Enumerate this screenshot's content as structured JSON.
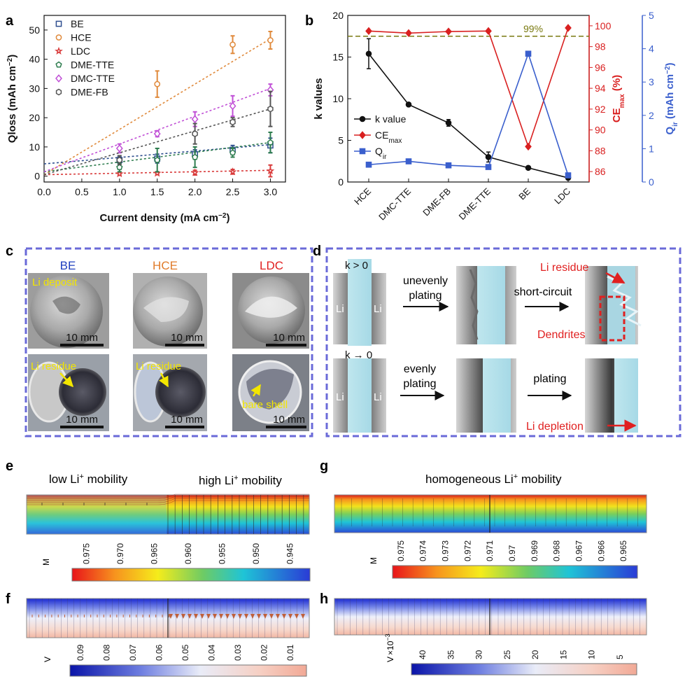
{
  "panels": {
    "a": "a",
    "b": "b",
    "c": "c",
    "d": "d",
    "e": "e",
    "f": "f",
    "g": "g",
    "h": "h"
  },
  "chart_data": [
    {
      "id": "a",
      "type": "scatter",
      "xlabel_main": "Current density (mA cm",
      "xlabel_sup": "−2",
      "xlabel_end": ")",
      "ylabel_main": "Qloss (mAh cm",
      "ylabel_sup": "−2",
      "ylabel_end": ")",
      "xlim": [
        0,
        3.2
      ],
      "ylim": [
        -2,
        55
      ],
      "xticks": [
        "0.0",
        "0.5",
        "1.0",
        "1.5",
        "2.0",
        "2.5",
        "3.0"
      ],
      "yticks": [
        "0",
        "10",
        "20",
        "30",
        "40",
        "50"
      ],
      "series": [
        {
          "name": "BE",
          "marker": "square",
          "color": "#2f4f8f",
          "x": [
            1.0,
            1.5,
            2.0,
            2.5,
            3.0
          ],
          "y": [
            5.5,
            6.0,
            7.5,
            9.0,
            10.5
          ],
          "err": [
            1.0,
            1.5,
            1.5,
            1.5,
            2.5
          ],
          "fit": [
            4.2,
            10.8
          ]
        },
        {
          "name": "HCE",
          "marker": "circle",
          "color": "#e08a3c",
          "x": [
            1.5,
            2.5,
            3.0
          ],
          "y": [
            31.5,
            45.0,
            46.5
          ],
          "err": [
            4.5,
            3.0,
            3.0
          ],
          "fit": [
            0.5,
            47.0
          ]
        },
        {
          "name": "LDC",
          "marker": "star",
          "color": "#d93b3b",
          "x": [
            1.0,
            1.5,
            2.0,
            2.5,
            3.0
          ],
          "y": [
            0.8,
            1.0,
            1.2,
            1.5,
            1.8
          ],
          "err": [
            0.5,
            0.5,
            0.8,
            0.8,
            2.0
          ],
          "fit": [
            0.5,
            2.0
          ]
        },
        {
          "name": "DME-TTE",
          "marker": "pentagon",
          "color": "#2e7d4f",
          "x": [
            1.0,
            1.5,
            2.0,
            2.5,
            3.0
          ],
          "y": [
            3.0,
            5.5,
            6.5,
            8.0,
            11.5
          ],
          "err": [
            1.5,
            4.0,
            3.5,
            1.5,
            3.5
          ],
          "fit": [
            1.5,
            11.5
          ]
        },
        {
          "name": "DMC-TTE",
          "marker": "diamond",
          "color": "#c04fd6",
          "x": [
            1.0,
            1.5,
            2.0,
            2.5,
            3.0
          ],
          "y": [
            9.5,
            14.5,
            19.5,
            24.0,
            29.5
          ],
          "err": [
            1.5,
            1.0,
            2.5,
            3.5,
            2.0
          ],
          "fit": [
            1.5,
            30.0
          ]
        },
        {
          "name": "DME-FB",
          "marker": "hexagon",
          "color": "#555555",
          "x": [
            1.0,
            2.0,
            2.5,
            3.0
          ],
          "y": [
            5.5,
            14.5,
            18.5,
            23.0
          ],
          "err": [
            1.5,
            3.5,
            1.5,
            6.0
          ],
          "fit": [
            0.5,
            23.0
          ]
        }
      ]
    },
    {
      "id": "b",
      "type": "line",
      "ylabel_left": "k values",
      "ylabel_right1_main": "CE",
      "ylabel_right1_sub": "max",
      "ylabel_right1_end": " (%)",
      "ylabel_right2_main": "Q",
      "ylabel_right2_sub": "ir",
      "ylabel_right2_end": " (mAh cm",
      "ylabel_right2_sup": "−2",
      "ylabel_right2_close": ")",
      "categories": [
        "HCE",
        "DMC-TTE",
        "DME-FB",
        "DME-TTE",
        "BE",
        "LDC"
      ],
      "ylim_left": [
        0,
        20
      ],
      "ylim_ce": [
        85,
        101
      ],
      "ylim_q": [
        0,
        5
      ],
      "yticks_left": [
        "0",
        "5",
        "10",
        "15",
        "20"
      ],
      "yticks_ce": [
        "86",
        "88",
        "90",
        "92",
        "94",
        "96",
        "98",
        "100"
      ],
      "yticks_q": [
        "0",
        "1",
        "2",
        "3",
        "4",
        "5"
      ],
      "ref_line": {
        "value": 99,
        "label": "99%"
      },
      "series": [
        {
          "name": "k value",
          "axis": "left",
          "color": "#111111",
          "marker": "circle",
          "values": [
            15.4,
            9.3,
            7.1,
            3.0,
            1.7,
            0.5
          ],
          "err": [
            1.8,
            0.2,
            0.4,
            0.6,
            0.1,
            0.1
          ]
        },
        {
          "name_main": "CE",
          "name_sub": "max",
          "axis": "ce",
          "color": "#d92020",
          "marker": "diamond",
          "values": [
            99.5,
            99.3,
            99.45,
            99.5,
            88.4,
            99.8
          ]
        },
        {
          "name_main": "Q",
          "name_sub": "ir",
          "axis": "q",
          "color": "#3a5fcd",
          "marker": "square",
          "values": [
            0.52,
            0.62,
            0.5,
            0.45,
            3.85,
            0.2
          ]
        }
      ]
    }
  ],
  "panel_c": {
    "labels": [
      {
        "text": "BE",
        "color": "#1f3fbf"
      },
      {
        "text": "HCE",
        "color": "#e07b2a"
      },
      {
        "text": "LDC",
        "color": "#e02020"
      }
    ],
    "annotations": [
      "Li deposit",
      "Li residue",
      "Li residue",
      "bare shell"
    ],
    "scale": "10 mm"
  },
  "panel_d": {
    "k_pos": "k > 0",
    "k_zero": "k → 0",
    "uneven1": "unevenly",
    "uneven2": "plating",
    "short": "short-circuit",
    "even1": "evenly",
    "even2": "plating",
    "plating": "plating",
    "li": "Li",
    "residue": "Li residue",
    "dendrites": "Dendrites",
    "depletion": "Li depletion"
  },
  "panel_e": {
    "low_pre": "low Li",
    "low_post": " mobility",
    "high_pre": "high Li",
    "high_post": " mobility",
    "sup": "+",
    "unit": "M",
    "ticks": [
      "0.975",
      "0.970",
      "0.965",
      "0.960",
      "0.955",
      "0.950",
      "0.945"
    ]
  },
  "panel_g": {
    "title_pre": "homogeneous Li",
    "title_post": " mobility",
    "sup": "+",
    "unit": "M",
    "ticks": [
      "0.975",
      "0.974",
      "0.973",
      "0.972",
      "0.971",
      "0.97",
      "0.969",
      "0.968",
      "0.967",
      "0.966",
      "0.965"
    ]
  },
  "panel_f": {
    "unit": "V",
    "ticks": [
      "0.09",
      "0.08",
      "0.07",
      "0.06",
      "0.05",
      "0.04",
      "0.03",
      "0.02",
      "0.01"
    ]
  },
  "panel_h": {
    "unit": "V",
    "exp": "×10",
    "exp_sup": "−3",
    "ticks": [
      "40",
      "35",
      "30",
      "25",
      "20",
      "15",
      "10",
      "5"
    ]
  }
}
